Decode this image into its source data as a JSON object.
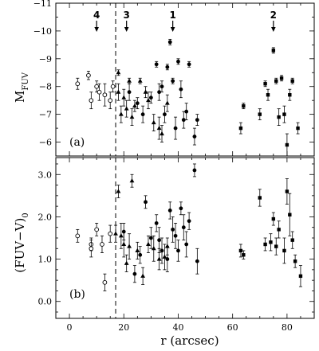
{
  "chart_data": [
    {
      "type": "scatter",
      "panel_label": "(a)",
      "xlabel": "r (arcsec)",
      "ylabel": "M_FUV",
      "ylabel_main": "M",
      "ylabel_sub": "FUV",
      "xlim": [
        -5,
        90
      ],
      "ylim": [
        -5.5,
        -11
      ],
      "y_inverted": true,
      "xticks": [
        0,
        20,
        40,
        60,
        80
      ],
      "yticks": [
        -6,
        -7,
        -8,
        -9,
        -10,
        -11
      ],
      "ytick_labels": [
        "−6",
        "−7",
        "−8",
        "−9",
        "−10",
        "−11"
      ],
      "dashed_vline_x": 17,
      "markers": [
        {
          "label": "4",
          "x": 10
        },
        {
          "label": "3",
          "x": 21
        },
        {
          "label": "1",
          "x": 38
        },
        {
          "label": "2",
          "x": 75
        }
      ],
      "series": [
        {
          "marker": "open-circle",
          "points": [
            {
              "x": 3,
              "y": -8.1,
              "e": 0.2
            },
            {
              "x": 7,
              "y": -8.4,
              "e": 0.15
            },
            {
              "x": 8,
              "y": -7.5,
              "e": 0.3
            },
            {
              "x": 10,
              "y": -8.0,
              "e": 0.2
            },
            {
              "x": 11,
              "y": -7.8,
              "e": 0.3
            },
            {
              "x": 13,
              "y": -7.7,
              "e": 0.4
            },
            {
              "x": 15,
              "y": -7.5,
              "e": 0.3
            },
            {
              "x": 16,
              "y": -8.0,
              "e": 0.2
            }
          ]
        },
        {
          "marker": "filled-triangle",
          "points": [
            {
              "x": 18,
              "y": -8.5,
              "e": 0.1
            },
            {
              "x": 18,
              "y": -7.8,
              "e": 0.3
            },
            {
              "x": 19,
              "y": -7.0,
              "e": 0.3
            },
            {
              "x": 20,
              "y": -7.6,
              "e": 0.3
            },
            {
              "x": 21,
              "y": -7.2,
              "e": 0.3
            },
            {
              "x": 22,
              "y": -8.2,
              "e": 0.1
            },
            {
              "x": 23,
              "y": -6.9,
              "e": 0.3
            },
            {
              "x": 24,
              "y": -7.3,
              "e": 0.2
            },
            {
              "x": 26,
              "y": -8.2,
              "e": 0.1
            },
            {
              "x": 28,
              "y": -7.8,
              "e": 0.2
            },
            {
              "x": 29,
              "y": -7.5,
              "e": 0.3
            },
            {
              "x": 31,
              "y": -6.7,
              "e": 0.3
            },
            {
              "x": 33,
              "y": -6.5,
              "e": 0.4
            },
            {
              "x": 34,
              "y": -6.3,
              "e": 0.3
            },
            {
              "x": 36,
              "y": -7.4,
              "e": 0.3
            }
          ]
        },
        {
          "marker": "filled-circle",
          "points": [
            {
              "x": 22,
              "y": -7.8,
              "e": 0.3
            },
            {
              "x": 25,
              "y": -7.4,
              "e": 0.2
            },
            {
              "x": 27,
              "y": -7.0,
              "e": 0.3
            },
            {
              "x": 30,
              "y": -7.6,
              "e": 0.2
            },
            {
              "x": 32,
              "y": -8.8,
              "e": 0.1
            },
            {
              "x": 33,
              "y": -7.8,
              "e": 0.3
            },
            {
              "x": 34,
              "y": -8.0,
              "e": 0.2
            },
            {
              "x": 35,
              "y": -7.0,
              "e": 0.3
            },
            {
              "x": 36,
              "y": -8.7,
              "e": 0.1
            },
            {
              "x": 37,
              "y": -9.6,
              "e": 0.1
            },
            {
              "x": 38,
              "y": -8.2,
              "e": 0.1
            },
            {
              "x": 39,
              "y": -6.5,
              "e": 0.4
            },
            {
              "x": 40,
              "y": -8.9,
              "e": 0.1
            },
            {
              "x": 41,
              "y": -7.9,
              "e": 0.3
            },
            {
              "x": 42,
              "y": -6.8,
              "e": 0.3
            },
            {
              "x": 43,
              "y": -7.1,
              "e": 0.3
            },
            {
              "x": 44,
              "y": -8.8,
              "e": 0.1
            },
            {
              "x": 46,
              "y": -6.2,
              "e": 0.3
            },
            {
              "x": 47,
              "y": -6.8,
              "e": 0.2
            }
          ]
        },
        {
          "marker": "filled-square",
          "points": [
            {
              "x": 63,
              "y": -6.5,
              "e": 0.2
            },
            {
              "x": 64,
              "y": -7.3,
              "e": 0.1
            },
            {
              "x": 70,
              "y": -7.0,
              "e": 0.2
            },
            {
              "x": 72,
              "y": -8.1,
              "e": 0.1
            },
            {
              "x": 73,
              "y": -7.7,
              "e": 0.2
            },
            {
              "x": 75,
              "y": -9.3,
              "e": 0.1
            },
            {
              "x": 76,
              "y": -8.2,
              "e": 0.1
            },
            {
              "x": 77,
              "y": -6.9,
              "e": 0.3
            },
            {
              "x": 78,
              "y": -8.3,
              "e": 0.1
            },
            {
              "x": 79,
              "y": -7.0,
              "e": 0.3
            },
            {
              "x": 80,
              "y": -5.9,
              "e": 0.4
            },
            {
              "x": 81,
              "y": -7.7,
              "e": 0.2
            },
            {
              "x": 82,
              "y": -8.2,
              "e": 0.1
            },
            {
              "x": 84,
              "y": -6.5,
              "e": 0.2
            }
          ]
        }
      ]
    },
    {
      "type": "scatter",
      "panel_label": "(b)",
      "xlabel": "r (arcsec)",
      "ylabel": "(FUV−V)₀",
      "ylabel_main": "(FUV−V)",
      "ylabel_sub": "0",
      "xlim": [
        -5,
        90
      ],
      "ylim": [
        -0.4,
        3.4
      ],
      "xticks": [
        0,
        20,
        40,
        60,
        80
      ],
      "xtick_labels": [
        "0",
        "20",
        "40",
        "60",
        "80"
      ],
      "yticks": [
        0,
        1,
        2,
        3
      ],
      "ytick_labels": [
        "0.0",
        "1.0",
        "2.0",
        "3.0"
      ],
      "dashed_vline_x": 17,
      "series": [
        {
          "marker": "open-circle",
          "points": [
            {
              "x": 3,
              "y": 1.55,
              "e": 0.15
            },
            {
              "x": 8,
              "y": 1.35,
              "e": 0.15
            },
            {
              "x": 8,
              "y": 1.25,
              "e": 0.2
            },
            {
              "x": 10,
              "y": 1.7,
              "e": 0.15
            },
            {
              "x": 12,
              "y": 1.35,
              "e": 0.2
            },
            {
              "x": 13,
              "y": 0.45,
              "e": 0.2
            },
            {
              "x": 15,
              "y": 1.6,
              "e": 0.2
            }
          ]
        },
        {
          "marker": "filled-triangle",
          "points": [
            {
              "x": 17,
              "y": 1.6,
              "e": 0.2
            },
            {
              "x": 18,
              "y": 2.6,
              "e": 0.15
            },
            {
              "x": 19,
              "y": 1.55,
              "e": 0.3
            },
            {
              "x": 20,
              "y": 1.35,
              "e": 0.3
            },
            {
              "x": 21,
              "y": 0.9,
              "e": 0.2
            },
            {
              "x": 22,
              "y": 1.3,
              "e": 0.3
            },
            {
              "x": 23,
              "y": 2.85,
              "e": 0.15
            },
            {
              "x": 25,
              "y": 1.2,
              "e": 0.2
            },
            {
              "x": 27,
              "y": 0.6,
              "e": 0.2
            },
            {
              "x": 29,
              "y": 1.35,
              "e": 0.2
            },
            {
              "x": 31,
              "y": 1.25,
              "e": 0.3
            },
            {
              "x": 33,
              "y": 1.0,
              "e": 0.25
            },
            {
              "x": 35,
              "y": 1.05,
              "e": 0.3
            },
            {
              "x": 36,
              "y": 1.3,
              "e": 0.2
            }
          ]
        },
        {
          "marker": "filled-circle",
          "points": [
            {
              "x": 20,
              "y": 1.65,
              "e": 0.2
            },
            {
              "x": 24,
              "y": 0.65,
              "e": 0.2
            },
            {
              "x": 26,
              "y": 1.1,
              "e": 0.2
            },
            {
              "x": 28,
              "y": 2.35,
              "e": 0.15
            },
            {
              "x": 30,
              "y": 1.5,
              "e": 0.25
            },
            {
              "x": 32,
              "y": 1.85,
              "e": 0.2
            },
            {
              "x": 33,
              "y": 1.45,
              "e": 0.3
            },
            {
              "x": 34,
              "y": 1.2,
              "e": 0.3
            },
            {
              "x": 36,
              "y": 1.0,
              "e": 0.3
            },
            {
              "x": 37,
              "y": 2.15,
              "e": 0.2
            },
            {
              "x": 38,
              "y": 1.7,
              "e": 0.3
            },
            {
              "x": 39,
              "y": 1.55,
              "e": 0.3
            },
            {
              "x": 40,
              "y": 1.2,
              "e": 0.25
            },
            {
              "x": 41,
              "y": 2.2,
              "e": 0.15
            },
            {
              "x": 42,
              "y": 1.75,
              "e": 0.3
            },
            {
              "x": 43,
              "y": 1.35,
              "e": 0.3
            },
            {
              "x": 44,
              "y": 1.9,
              "e": 0.2
            },
            {
              "x": 46,
              "y": 3.1,
              "e": 0.15
            },
            {
              "x": 47,
              "y": 0.95,
              "e": 0.3
            }
          ]
        },
        {
          "marker": "filled-square",
          "points": [
            {
              "x": 63,
              "y": 1.2,
              "e": 0.15
            },
            {
              "x": 64,
              "y": 1.1,
              "e": 0.1
            },
            {
              "x": 70,
              "y": 2.45,
              "e": 0.2
            },
            {
              "x": 72,
              "y": 1.35,
              "e": 0.15
            },
            {
              "x": 74,
              "y": 1.4,
              "e": 0.2
            },
            {
              "x": 75,
              "y": 1.95,
              "e": 0.15
            },
            {
              "x": 76,
              "y": 1.3,
              "e": 0.2
            },
            {
              "x": 77,
              "y": 1.7,
              "e": 0.2
            },
            {
              "x": 79,
              "y": 1.2,
              "e": 0.3
            },
            {
              "x": 80,
              "y": 2.6,
              "e": 0.3
            },
            {
              "x": 81,
              "y": 2.05,
              "e": 0.5
            },
            {
              "x": 82,
              "y": 1.45,
              "e": 0.2
            },
            {
              "x": 83,
              "y": 0.95,
              "e": 0.15
            },
            {
              "x": 85,
              "y": 0.6,
              "e": 0.25
            }
          ]
        }
      ]
    }
  ]
}
